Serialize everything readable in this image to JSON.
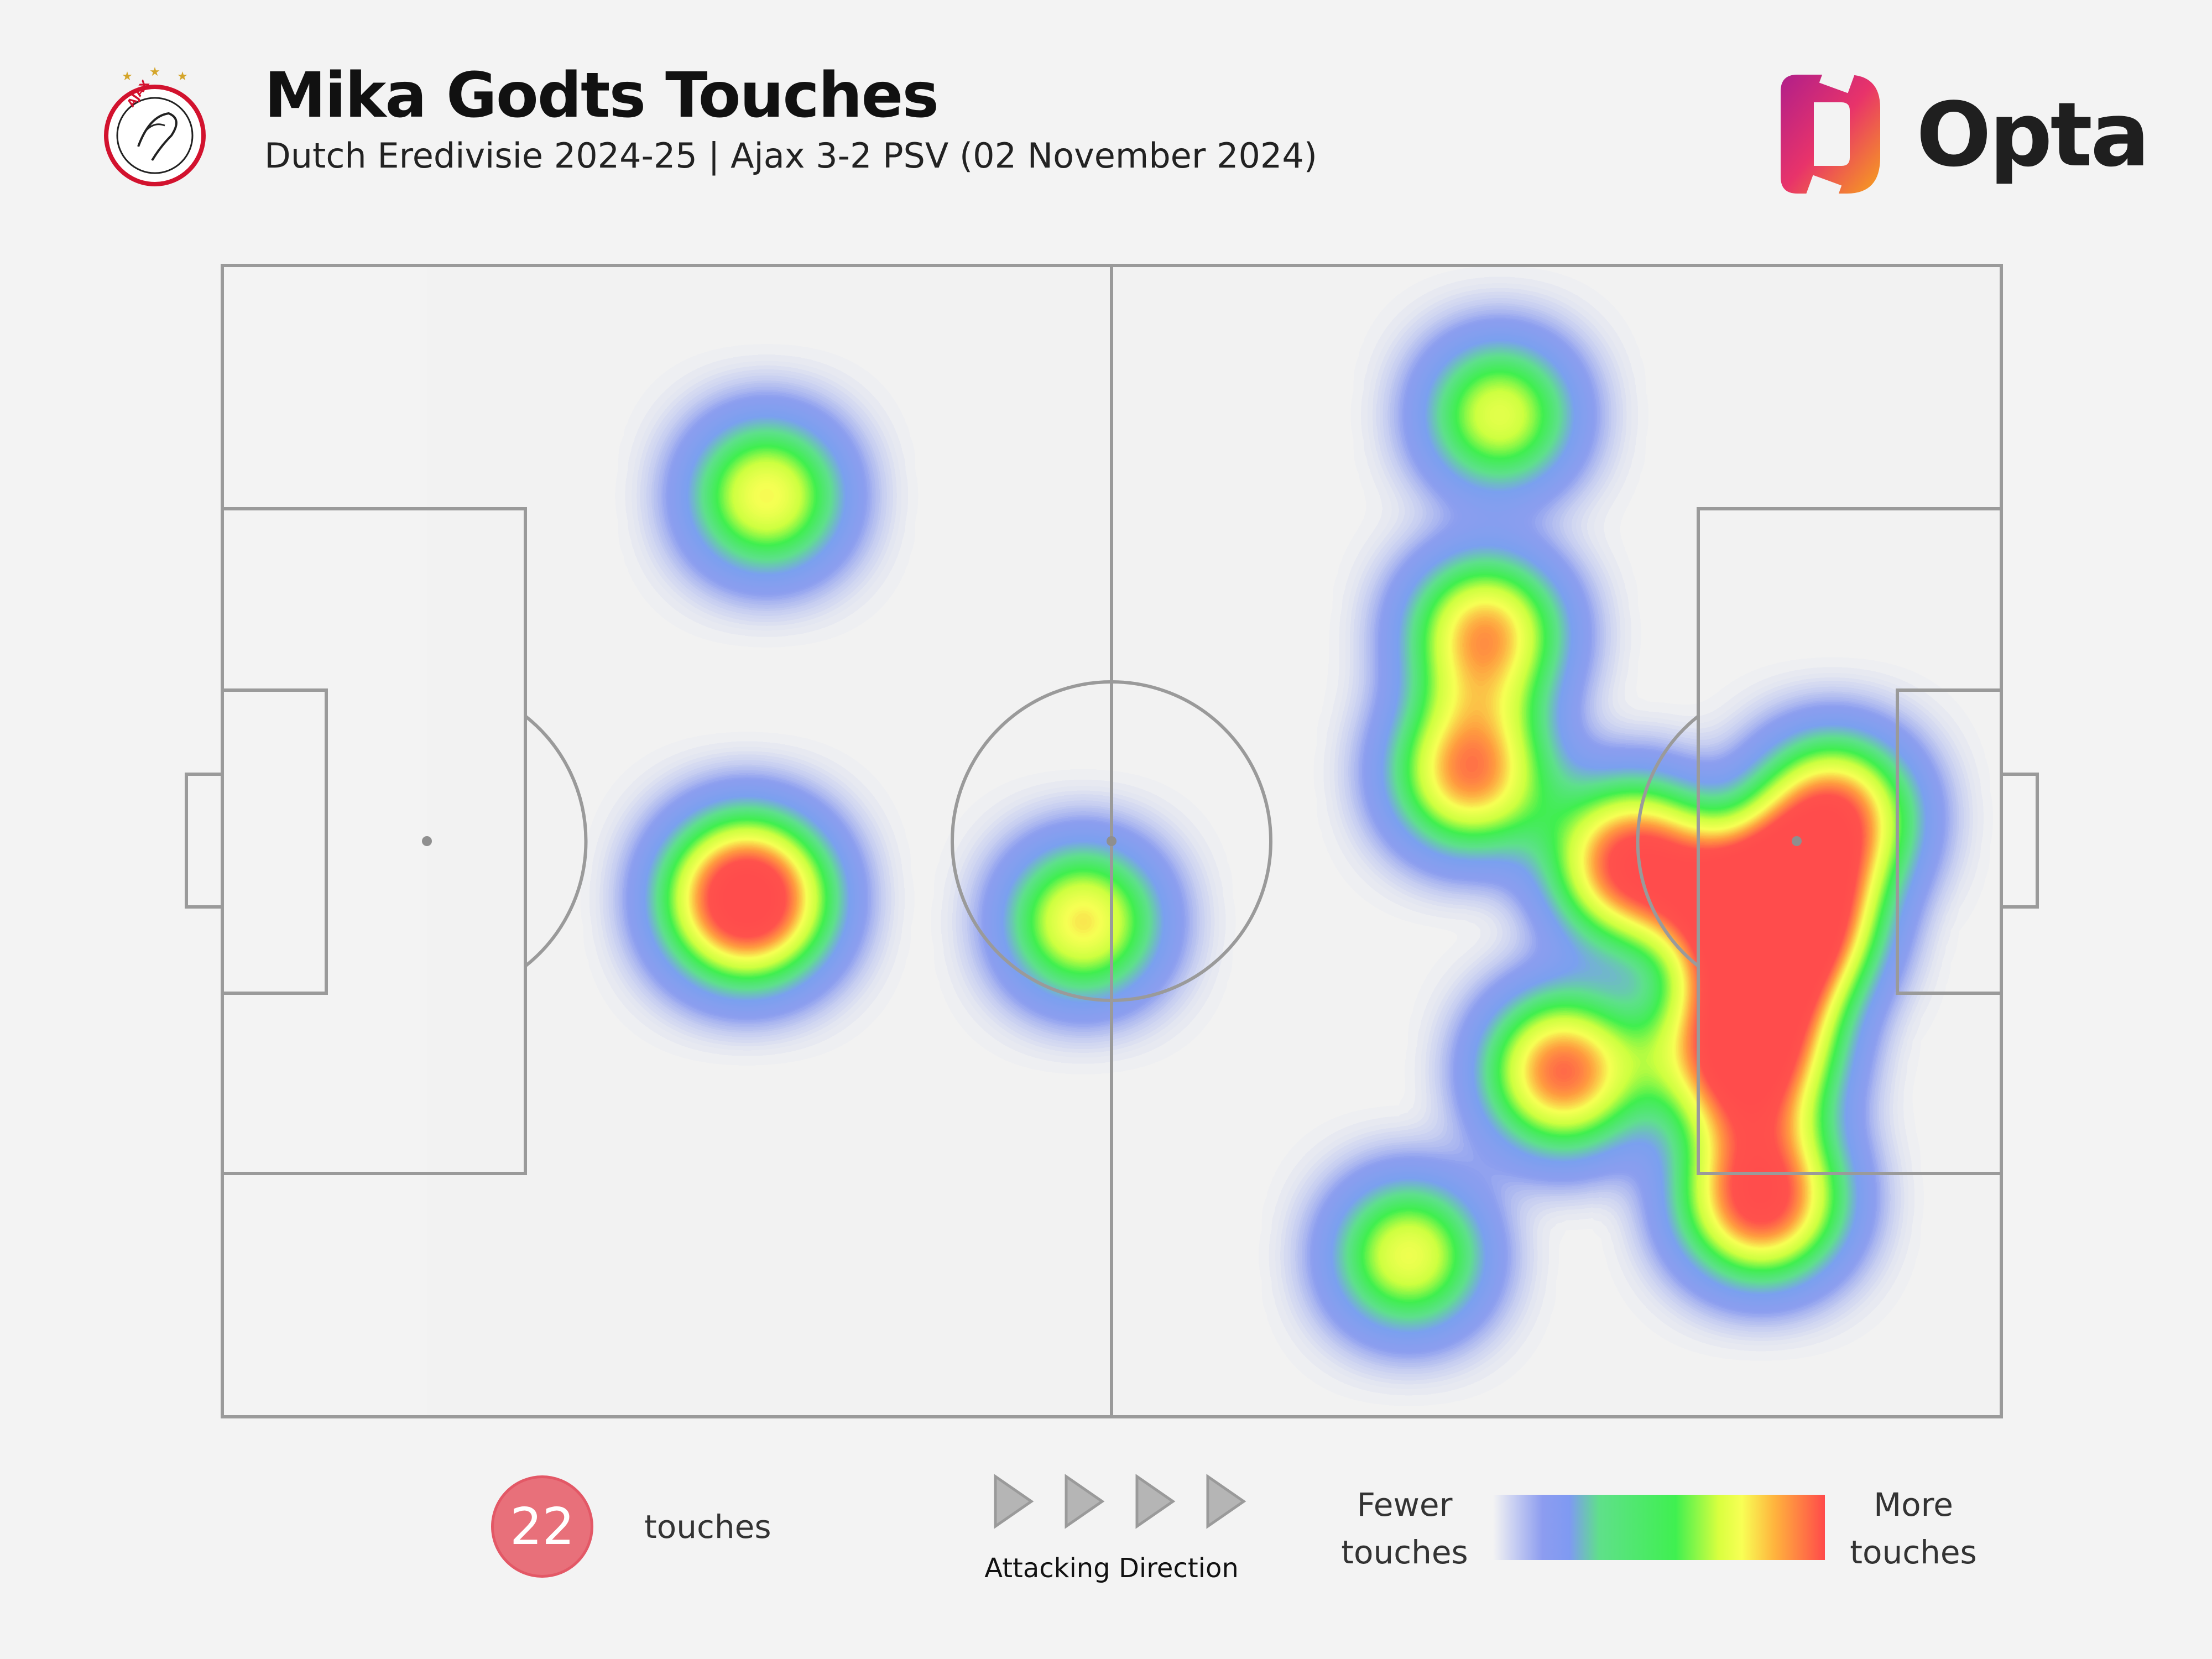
{
  "header": {
    "title": "Mika Godts Touches",
    "subtitle": "Dutch Eredivisie 2024-25 | Ajax 3-2 PSV (02 November 2024)",
    "brand": "Opta",
    "crest_text": "AJAX"
  },
  "chart_data": {
    "type": "heatmap",
    "title": "Mika Godts Touches",
    "x_range": [
      0,
      100
    ],
    "y_range": [
      0,
      100
    ],
    "attacking_direction": "left-to-right",
    "colormap": [
      "#8c9cf0",
      "#3ff050",
      "#f8ff55",
      "#ff4a4a"
    ],
    "hotspots": [
      {
        "x": 30.6,
        "y": 80,
        "intensity": 0.28
      },
      {
        "x": 29.5,
        "y": 45,
        "intensity": 0.65
      },
      {
        "x": 48.4,
        "y": 43,
        "intensity": 0.3
      },
      {
        "x": 71.8,
        "y": 87,
        "intensity": 0.22
      },
      {
        "x": 71,
        "y": 68,
        "intensity": 0.38
      },
      {
        "x": 70.2,
        "y": 56,
        "intensity": 0.42
      },
      {
        "x": 79.4,
        "y": 48,
        "intensity": 0.55
      },
      {
        "x": 87.3,
        "y": 43,
        "intensity": 0.95
      },
      {
        "x": 90.5,
        "y": 52,
        "intensity": 0.5
      },
      {
        "x": 85.7,
        "y": 32,
        "intensity": 0.7
      },
      {
        "x": 75.4,
        "y": 30,
        "intensity": 0.45
      },
      {
        "x": 86.5,
        "y": 19,
        "intensity": 0.55
      },
      {
        "x": 66.7,
        "y": 14,
        "intensity": 0.25
      }
    ]
  },
  "footer": {
    "touch_count": "22",
    "touch_label": "touches",
    "direction_label": "Attacking Direction",
    "legend_low": [
      "Fewer",
      "touches"
    ],
    "legend_high": [
      "More",
      "touches"
    ]
  },
  "colors": {
    "background": "#f3f3f3",
    "pitch_lines": "#9a9a9a",
    "badge": "#e8707a"
  }
}
